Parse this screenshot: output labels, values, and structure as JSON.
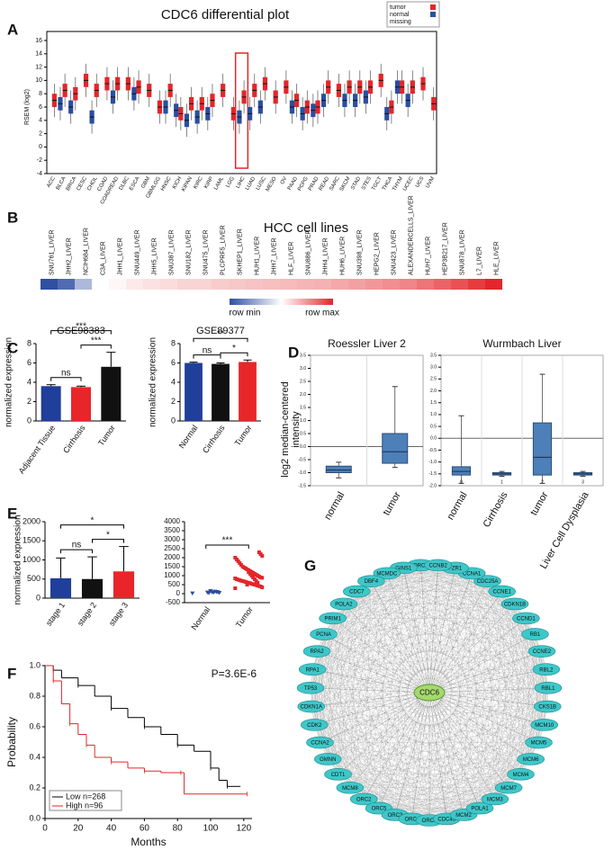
{
  "chart_data": [
    {
      "panel": "A",
      "type": "boxmedian",
      "title": "CDC6 differential plot",
      "ylabel": "RSEM (log2)",
      "categories": [
        "ACC",
        "BLCA",
        "BRCA",
        "CESC",
        "CHOL",
        "COAD",
        "COADREAD",
        "DLBC",
        "ESCA",
        "GBM",
        "GBMLGG",
        "HNSC",
        "KICH",
        "KIPAN",
        "KIRC",
        "KIRP",
        "LAML",
        "LGG",
        "LIHC",
        "LUAD",
        "LUSC",
        "MESO",
        "OV",
        "PAAD",
        "PCPG",
        "PRAD",
        "READ",
        "SARC",
        "SKCM",
        "STAD",
        "STES",
        "TGCT",
        "THCA",
        "THYM",
        "UCEC",
        "UCS",
        "UVM"
      ],
      "series": [
        {
          "name": "tumor",
          "color": "#e3262b",
          "values": [
            7,
            8.5,
            8,
            10,
            8.5,
            9.5,
            9.5,
            9.5,
            9,
            8.5,
            6,
            8.5,
            5,
            6.5,
            6.5,
            7,
            8.5,
            5,
            7.5,
            8.5,
            9.5,
            7.5,
            9,
            7,
            6,
            6,
            9,
            8.5,
            9,
            9,
            9,
            10,
            6,
            9,
            9,
            9.5,
            6.5
          ]
        },
        {
          "name": "normal",
          "color": "#2a4ea0",
          "values": [
            null,
            6.5,
            6,
            null,
            4.5,
            null,
            7.5,
            null,
            8,
            null,
            null,
            6,
            5.5,
            4,
            4.5,
            5,
            null,
            null,
            4.5,
            5,
            6,
            null,
            null,
            6,
            5,
            5.5,
            7,
            null,
            7,
            7,
            7.5,
            null,
            5,
            9,
            7,
            null,
            null
          ]
        }
      ],
      "legend_extra": "missing",
      "highlight": "LIHC",
      "ylim": [
        -4,
        16
      ],
      "yticks": [
        -4,
        -2,
        0,
        2,
        4,
        6,
        8,
        10,
        12,
        14,
        16
      ]
    },
    {
      "panel": "B",
      "type": "heatmap",
      "title": "HCC cell lines",
      "categories": [
        "SNU761_LIVER",
        "JHH2_LIVER",
        "NCIH684_LIVER",
        "C3A_LIVER",
        "JHH1_LIVER",
        "SNU449_LIVER",
        "JHH5_LIVER",
        "SNU387_LIVER",
        "SNU182_LIVER",
        "SNU475_LIVER",
        "PLCPRF5_LIVER",
        "SKHEP1_LIVER",
        "HUH1_LIVER",
        "JHH7_LIVER",
        "HLF_LIVER",
        "SNU886_LIVER",
        "JHH4_LIVER",
        "HUH6_LIVER",
        "SNU398_LIVER",
        "HEPG2_LIVER",
        "SNU423_LIVER",
        "ALEXANDERCELLS_LIVER",
        "HUH7_LIVER",
        "HEP3B217_LIVER",
        "SNU878_LIVER",
        "L7_LIVER",
        "HLE_LIVER"
      ],
      "values": [
        0,
        0.08,
        0.3,
        0.5,
        0.52,
        0.55,
        0.57,
        0.58,
        0.6,
        0.6,
        0.62,
        0.63,
        0.64,
        0.65,
        0.66,
        0.67,
        0.68,
        0.7,
        0.72,
        0.74,
        0.76,
        0.78,
        0.82,
        0.86,
        0.9,
        0.95,
        1
      ],
      "colorbar_labels": [
        "row min",
        "row max"
      ]
    },
    {
      "panel": "C",
      "type": "bar",
      "title": "GSE98383",
      "ylabel": "normalized expression",
      "categories": [
        "Adjacent Tissue",
        "Cirrhosis",
        "Tumor"
      ],
      "values": [
        3.6,
        3.5,
        5.6
      ],
      "errors": [
        0.15,
        0.1,
        1.5
      ],
      "colors": [
        "#1f3f9a",
        "#e8262a",
        "#111111"
      ],
      "ylim": [
        0,
        8
      ],
      "yticks": [
        0,
        2,
        4,
        6,
        8
      ],
      "comparisons": [
        {
          "label": "***",
          "between": [
            "Adjacent Tissue",
            "Tumor"
          ]
        },
        {
          "label": "ns",
          "between": [
            "Adjacent Tissue",
            "Cirrhosis"
          ]
        },
        {
          "label": "***",
          "between": [
            "Cirrhosis",
            "Tumor"
          ]
        }
      ]
    },
    {
      "type": "bar",
      "title": "GSE89377",
      "ylabel": "normalized expression",
      "categories": [
        "Normal",
        "Cirrhosis",
        "Tumor"
      ],
      "values": [
        6.0,
        5.9,
        6.1
      ],
      "errors": [
        0.08,
        0.1,
        0.2
      ],
      "colors": [
        "#1f3f9a",
        "#111111",
        "#e8262a"
      ],
      "ylim": [
        0,
        8
      ],
      "yticks": [
        0,
        2,
        4,
        6,
        8
      ],
      "comparisons": [
        {
          "label": "**",
          "between": [
            "Normal",
            "Tumor"
          ]
        },
        {
          "label": "ns",
          "between": [
            "Normal",
            "Cirrhosis"
          ]
        },
        {
          "label": "*",
          "between": [
            "Cirrhosis",
            "Tumor"
          ]
        }
      ]
    },
    {
      "panel": "D",
      "type": "box",
      "title": "Roessler Liver 2",
      "ylabel_lines": [
        "log2 median-centered",
        "intensity"
      ],
      "categories": [
        "normal",
        "tumor"
      ],
      "boxes": [
        {
          "min": -1.2,
          "q1": -1.0,
          "median": -0.9,
          "q3": -0.75,
          "max": -0.6
        },
        {
          "min": -0.8,
          "q1": -0.64,
          "median": -0.2,
          "q3": 0.5,
          "max": 2.3
        }
      ],
      "ylim": [
        -1.5,
        3.5
      ],
      "yticks": [
        -1.5,
        {
          "value": -1,
          "label": "-1.0"
        },
        -0.5,
        {
          "value": 0,
          "label": "0.0"
        },
        0.5,
        {
          "value": 1,
          "label": "1.0"
        },
        1.5,
        {
          "value": 2,
          "label": "2.0"
        },
        2.5,
        {
          "value": 3,
          "label": "3.0"
        },
        3.5
      ]
    },
    {
      "type": "box",
      "title": "Wurmbach Liver",
      "categories": [
        "normal",
        "Cirrhosis",
        "tumor",
        "Liver Cell Dysplasia"
      ],
      "codes": [
        "0",
        "1",
        "2",
        "3"
      ],
      "boxes": [
        {
          "min": -1.9,
          "q1": -1.55,
          "median": -1.4,
          "q3": -1.2,
          "max": 0.95
        },
        {
          "min": -1.6,
          "q1": -1.55,
          "median": -1.5,
          "q3": -1.45,
          "max": -1.4
        },
        {
          "min": -1.9,
          "q1": -1.55,
          "median": -0.8,
          "q3": 0.65,
          "max": 2.7
        },
        {
          "min": -1.6,
          "q1": -1.55,
          "median": -1.5,
          "q3": -1.45,
          "max": -1.4
        }
      ],
      "ylim": [
        -2,
        3.5
      ],
      "yticks": [
        {
          "value": -2,
          "label": "-2.0"
        },
        -1.5,
        {
          "value": -1,
          "label": "-1.0"
        },
        -0.5,
        {
          "value": 0,
          "label": "0.0"
        },
        0.5,
        {
          "value": 1,
          "label": "1.0"
        },
        1.5,
        {
          "value": 2,
          "label": "2.0"
        },
        2.5,
        {
          "value": 3,
          "label": "3.0"
        },
        3.5
      ]
    },
    {
      "panel": "E",
      "type": "bar",
      "ylabel": "normalized expression",
      "categories": [
        "stage 1",
        "stage 2",
        "stage 3"
      ],
      "values": [
        520,
        500,
        700
      ],
      "errors": [
        530,
        580,
        650
      ],
      "colors": [
        "#1f3f9a",
        "#111111",
        "#e8262a"
      ],
      "ylim": [
        0,
        2000
      ],
      "yticks": [
        0,
        500,
        1000,
        1500,
        2000
      ],
      "comparisons": [
        {
          "label": "*",
          "between": [
            "stage 1",
            "stage 3"
          ]
        },
        {
          "label": "ns",
          "between": [
            "stage 1",
            "stage 2"
          ]
        },
        {
          "label": "*",
          "between": [
            "stage 2",
            "stage 3"
          ]
        }
      ]
    },
    {
      "type": "strip",
      "ylabel": "normalized expression",
      "categories": [
        "Normal",
        "Tumor"
      ],
      "colors": [
        "#2a4ea0",
        "#e3262b"
      ],
      "points": [
        [
          20,
          50,
          80,
          100,
          120,
          60,
          90,
          150,
          40,
          70
        ],
        [
          300,
          350,
          400,
          420,
          450,
          480,
          500,
          520,
          550,
          580,
          600,
          620,
          650,
          680,
          700,
          720,
          750,
          780,
          800,
          850,
          880,
          900,
          950,
          1000,
          1050,
          1100,
          1150,
          1200,
          1250,
          1300,
          1350,
          1400,
          1450,
          1500,
          1600,
          1700,
          1800,
          1900,
          2000,
          2100,
          2200,
          2300,
          600,
          700,
          800,
          900,
          1000,
          1100,
          1200,
          500
        ]
      ],
      "ylim": [
        -500,
        4000
      ],
      "yticks": [
        -500,
        0,
        500,
        1000,
        1500,
        2000,
        2500,
        3000,
        3500,
        4000
      ],
      "comparisons": [
        {
          "label": "***",
          "between": [
            "Normal",
            "Tumor"
          ]
        }
      ]
    },
    {
      "panel": "F",
      "type": "survival",
      "xlabel": "Months",
      "ylabel": "Probability",
      "annotation": "P=3.6E-6",
      "series": [
        {
          "name": "Low n=268",
          "color": "#000000",
          "x": [
            0,
            5,
            10,
            20,
            30,
            40,
            50,
            60,
            70,
            80,
            90,
            100,
            105,
            110,
            118
          ],
          "y": [
            1,
            0.97,
            0.92,
            0.87,
            0.8,
            0.72,
            0.66,
            0.6,
            0.55,
            0.48,
            0.44,
            0.33,
            0.25,
            0.21,
            0.21
          ]
        },
        {
          "name": "High n=96",
          "color": "#e3262b",
          "x": [
            0,
            5,
            10,
            15,
            20,
            25,
            30,
            40,
            50,
            60,
            70,
            82,
            84,
            122
          ],
          "y": [
            1,
            0.9,
            0.75,
            0.62,
            0.55,
            0.48,
            0.4,
            0.37,
            0.33,
            0.31,
            0.3,
            0.3,
            0.16,
            0.16
          ]
        }
      ],
      "xlim": [
        0,
        125
      ],
      "xticks": [
        0,
        20,
        40,
        60,
        80,
        100,
        120
      ],
      "ylim": [
        0,
        1
      ],
      "yticks": [
        {
          "value": 0,
          "label": "0.0"
        },
        0.2,
        0.4,
        0.6,
        0.8,
        {
          "value": 1,
          "label": "1.0"
        }
      ]
    },
    {
      "panel": "G",
      "type": "network",
      "center": "CDC6",
      "nodes": [
        "ORC6",
        "GINS1",
        "MCMDC",
        "DBF4",
        "CDC7",
        "POLA2",
        "PRIM1",
        "PCNA",
        "RPA2",
        "RPA1",
        "TP53",
        "CDKN1A",
        "CDK2",
        "CCNA2",
        "GMNN",
        "CDT1",
        "MCM8",
        "ORC2",
        "ORC5",
        "ORC3",
        "ORC4",
        "ORC1",
        "CDC45",
        "MCM2",
        "POLA1",
        "MCM3",
        "MCM7",
        "MCM4",
        "MCM6",
        "MCM5",
        "MCM10",
        "CKS1B",
        "RBL1",
        "RBL2",
        "CCNE2",
        "RB1",
        "CCND1",
        "CDKN1B",
        "CCNE1",
        "CDC25A",
        "CCNA1",
        "FZR1",
        "CCNB2"
      ]
    }
  ]
}
